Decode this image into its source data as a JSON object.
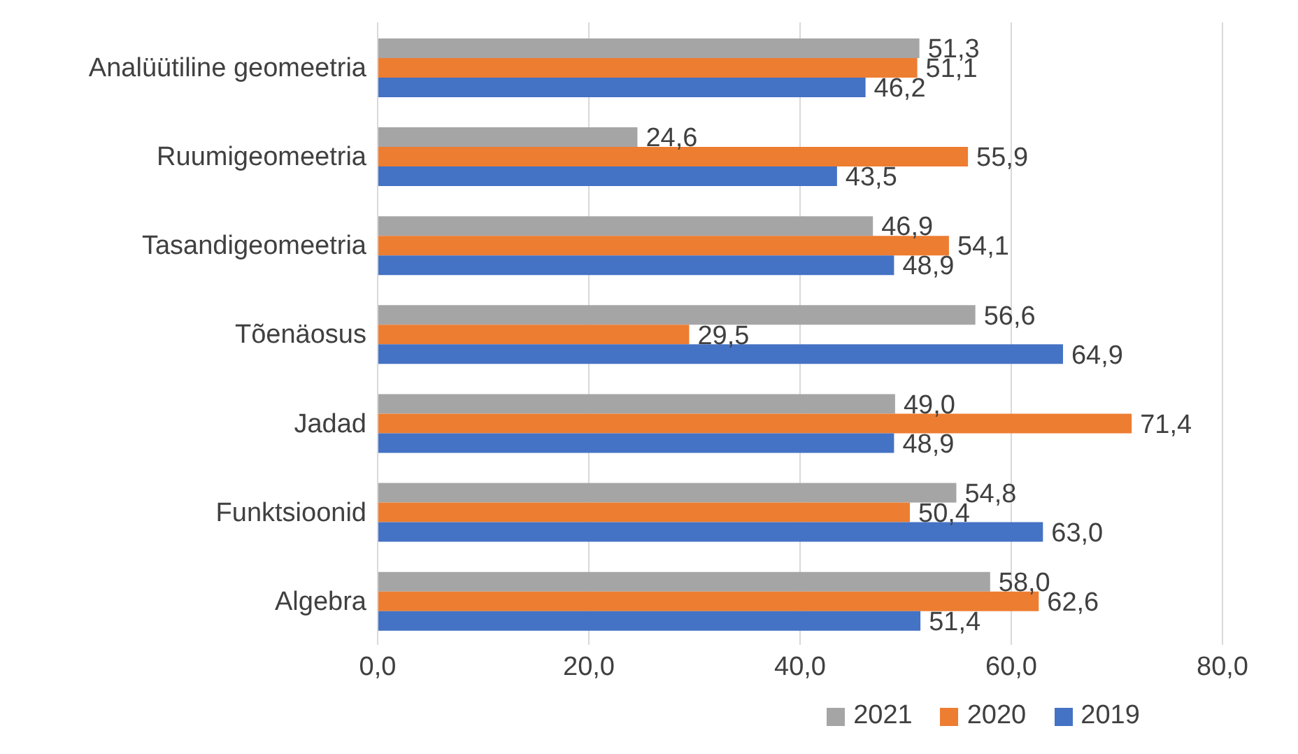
{
  "chart_data": {
    "type": "bar",
    "orientation": "horizontal",
    "categories": [
      "Analüütiline geomeetria",
      "Ruumigeomeetria",
      "Tasandigeomeetria",
      "Tõenäosus",
      "Jadad",
      "Funktsioonid",
      "Algebra"
    ],
    "series": [
      {
        "name": "2021",
        "color": "#a5a5a5",
        "values": [
          51.3,
          24.6,
          46.9,
          56.6,
          49.0,
          54.8,
          58.0
        ],
        "value_labels": [
          "51,3",
          "24,6",
          "46,9",
          "56,6",
          "49,0",
          "54,8",
          "58,0"
        ]
      },
      {
        "name": "2020",
        "color": "#ed7d31",
        "values": [
          51.1,
          55.9,
          54.1,
          29.5,
          71.4,
          50.4,
          62.6
        ],
        "value_labels": [
          "51,1",
          "55,9",
          "54,1",
          "29,5",
          "71,4",
          "50,4",
          "62,6"
        ]
      },
      {
        "name": "2019",
        "color": "#4472c4",
        "values": [
          46.2,
          43.5,
          48.9,
          64.9,
          48.9,
          63.0,
          51.4
        ],
        "value_labels": [
          "46,2",
          "43,5",
          "48,9",
          "64,9",
          "48,9",
          "63,0",
          "51,4"
        ]
      }
    ],
    "xlim": [
      0,
      80
    ],
    "xticks": [
      {
        "value": 0,
        "label": "0,0"
      },
      {
        "value": 20,
        "label": "20,0"
      },
      {
        "value": 40,
        "label": "40,0"
      },
      {
        "value": 60,
        "label": "60,0"
      },
      {
        "value": 80,
        "label": "80,0"
      }
    ],
    "grid": "x",
    "legend": "bottom"
  }
}
